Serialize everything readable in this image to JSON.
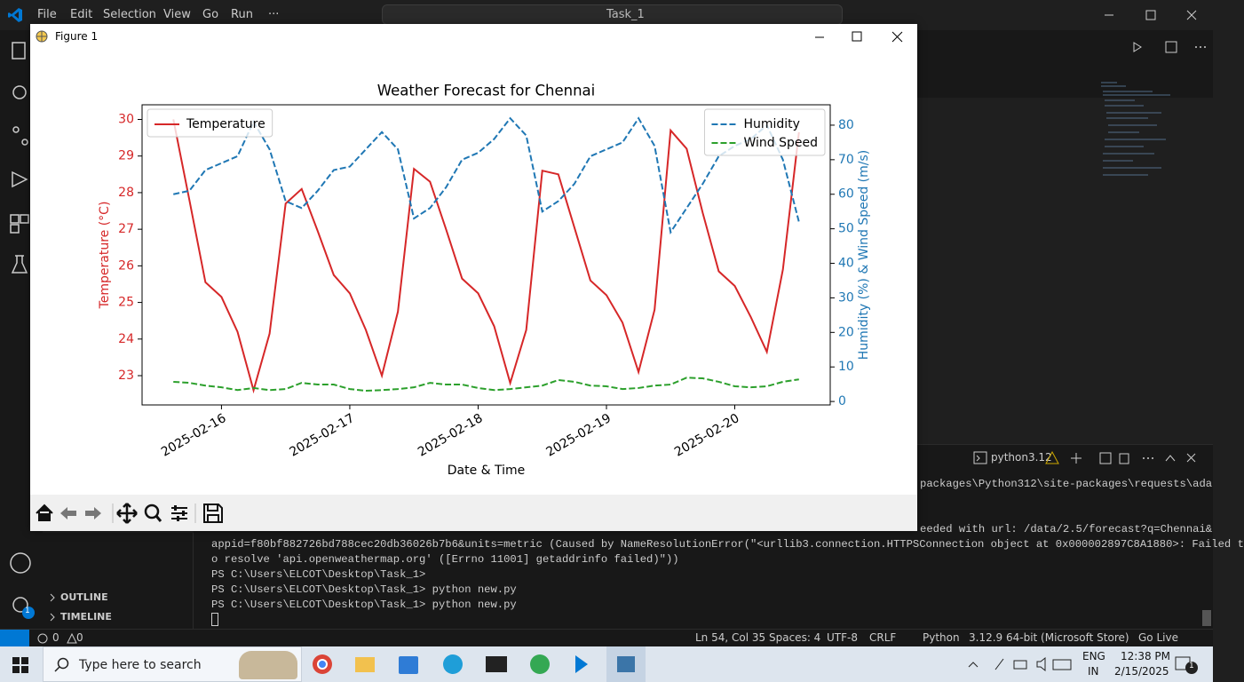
{
  "vscode": {
    "menu": [
      "File",
      "Edit",
      "Selection",
      "View",
      "Go",
      "Run",
      "···"
    ],
    "search": "Task_1",
    "sidebar": [
      "OUTLINE",
      "TIMELINE"
    ],
    "activity_badge": "1",
    "panel_tab": "python3.12",
    "terminal_partial": [
      "packages\\Python312\\site-packages\\requests\\ada",
      "eeded with url: /data/2.5/forecast?q=Chennai&"
    ],
    "terminal": [
      "appid=f80bf882726bd788cec20db36026b7b6&units=metric (Caused by NameResolutionError(\"<urllib3.connection.HTTPSConnection object at 0x000002897C8A1880>: Failed t",
      "o resolve 'api.openweathermap.org' ([Errno 11001] getaddrinfo failed)\"))",
      "PS C:\\Users\\ELCOT\\Desktop\\Task_1> ",
      "PS C:\\Users\\ELCOT\\Desktop\\Task_1> python new.py",
      "PS C:\\Users\\ELCOT\\Desktop\\Task_1> python new.py"
    ],
    "status": {
      "errors": "0",
      "warnings": "0",
      "position": "Ln 54, Col 35",
      "spaces": "Spaces: 4",
      "encoding": "UTF-8",
      "eol": "CRLF",
      "language": "Python",
      "interpreter": "3.12.9 64-bit (Microsoft Store)",
      "live": "Go Live"
    }
  },
  "figure": {
    "window_title": "Figure 1"
  },
  "chart_data": {
    "type": "line",
    "title": "Weather Forecast for Chennai",
    "x_label": "Date & Time",
    "y_label": "Temperature (°C)",
    "y2_label": "Humidity (%) & Wind Speed (m/s)",
    "x": [
      "2025-02-15 15:00",
      "2025-02-15 18:00",
      "2025-02-15 21:00",
      "2025-02-16 00:00",
      "2025-02-16 03:00",
      "2025-02-16 06:00",
      "2025-02-16 09:00",
      "2025-02-16 12:00",
      "2025-02-16 15:00",
      "2025-02-16 18:00",
      "2025-02-16 21:00",
      "2025-02-17 00:00",
      "2025-02-17 03:00",
      "2025-02-17 06:00",
      "2025-02-17 09:00",
      "2025-02-17 12:00",
      "2025-02-17 15:00",
      "2025-02-17 18:00",
      "2025-02-17 21:00",
      "2025-02-18 00:00",
      "2025-02-18 03:00",
      "2025-02-18 06:00",
      "2025-02-18 09:00",
      "2025-02-18 12:00",
      "2025-02-18 15:00",
      "2025-02-18 18:00",
      "2025-02-18 21:00",
      "2025-02-19 00:00",
      "2025-02-19 03:00",
      "2025-02-19 06:00",
      "2025-02-19 09:00",
      "2025-02-19 12:00",
      "2025-02-19 15:00",
      "2025-02-19 18:00",
      "2025-02-19 21:00",
      "2025-02-20 00:00",
      "2025-02-20 03:00",
      "2025-02-20 06:00",
      "2025-02-20 09:00",
      "2025-02-20 12:00"
    ],
    "xlim": [
      "2025-02-15 09:09",
      "2025-02-20 17:51"
    ],
    "xticks": [
      "2025-02-16",
      "2025-02-17",
      "2025-02-18",
      "2025-02-19",
      "2025-02-20"
    ],
    "ylim": [
      22.2,
      30.4
    ],
    "yticks": [
      23,
      24,
      25,
      26,
      27,
      28,
      29,
      30
    ],
    "y2lim": [
      -1.0,
      85.9
    ],
    "y2ticks": [
      0,
      10,
      20,
      30,
      40,
      50,
      60,
      70,
      80
    ],
    "grid": false,
    "legend": "upper left",
    "legend2": "upper right",
    "series": [
      {
        "name": "Temperature",
        "color": "#d62728",
        "style": "solid",
        "values": [
          30.0,
          27.8,
          25.55,
          25.15,
          24.2,
          22.6,
          24.15,
          27.7,
          28.1,
          26.95,
          25.75,
          25.25,
          24.25,
          23.0,
          24.75,
          28.65,
          28.3,
          27.0,
          25.65,
          25.25,
          24.35,
          22.8,
          24.25,
          28.6,
          28.5,
          27.05,
          25.6,
          25.2,
          24.45,
          23.1,
          24.8,
          29.7,
          29.2,
          27.45,
          25.85,
          25.45,
          24.6,
          23.65,
          25.9,
          29.65
        ]
      },
      {
        "name": "Humidity",
        "color": "#1f77b4",
        "style": "dashed",
        "axis": "y2",
        "values": [
          60,
          61,
          67,
          69,
          71,
          81,
          73,
          58,
          56,
          61,
          67,
          68,
          73,
          78,
          73,
          53,
          56,
          62,
          70,
          72,
          76,
          82,
          77,
          55,
          58,
          63,
          71,
          73,
          75,
          82,
          74,
          49,
          56,
          63,
          71,
          74,
          76,
          80,
          70,
          52
        ]
      },
      {
        "name": "Wind Speed",
        "color": "#2ca02c",
        "style": "dashed",
        "axis": "y2",
        "values": [
          5.7,
          5.4,
          4.6,
          4.1,
          3.3,
          3.9,
          3.3,
          3.6,
          5.4,
          4.9,
          4.9,
          3.6,
          3.1,
          3.3,
          3.6,
          4.1,
          5.4,
          4.9,
          4.9,
          3.9,
          3.3,
          3.6,
          4.1,
          4.6,
          6.2,
          5.7,
          4.6,
          4.4,
          3.6,
          3.9,
          4.6,
          4.9,
          6.9,
          6.7,
          5.7,
          4.4,
          4.1,
          4.4,
          5.7,
          6.4
        ]
      }
    ]
  },
  "taskbar": {
    "search": "Type here to search",
    "lang": "ENG",
    "region": "IN",
    "time": "12:38 PM",
    "date": "2/15/2025",
    "badge": "1"
  }
}
